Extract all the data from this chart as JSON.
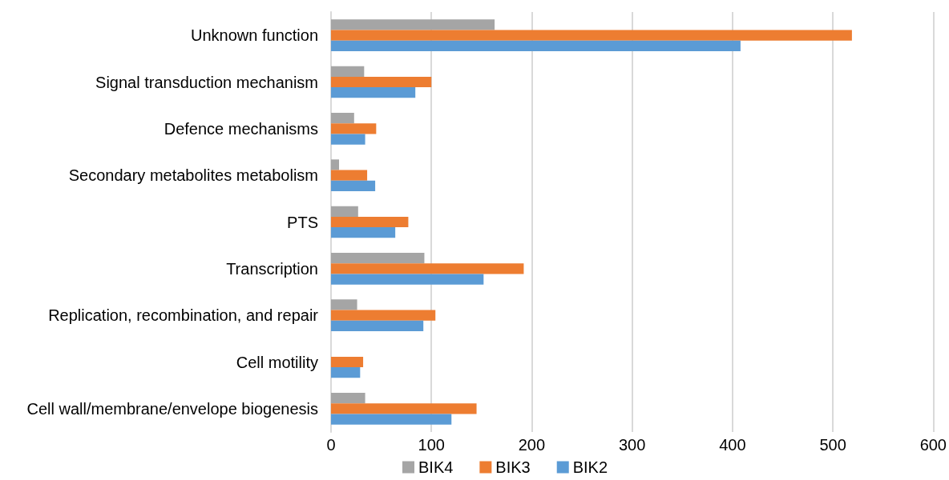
{
  "chart_data": {
    "type": "bar",
    "orientation": "horizontal",
    "categories": [
      "Unknown function",
      "Signal transduction mechanism",
      "Defence mechanisms",
      "Secondary metabolites metabolism",
      "PTS",
      "Transcription",
      "Replication, recombination, and repair",
      "Cell motility",
      "Cell wall/membrane/envelope biogenesis"
    ],
    "series": [
      {
        "name": "BIK4",
        "color": "#a5a5a5",
        "values": [
          163,
          33,
          23,
          8,
          27,
          93,
          26,
          null,
          34
        ]
      },
      {
        "name": "BIK3",
        "color": "#ed7d31",
        "values": [
          519,
          100,
          45,
          36,
          77,
          192,
          104,
          32,
          145
        ]
      },
      {
        "name": "BIK2",
        "color": "#5b9bd5",
        "values": [
          408,
          84,
          34,
          44,
          64,
          152,
          92,
          29,
          120
        ]
      }
    ],
    "xlim": [
      0,
      600
    ],
    "xticks": [
      0,
      100,
      200,
      300,
      400,
      500,
      600
    ],
    "grid": "x",
    "legend": "bottom"
  }
}
